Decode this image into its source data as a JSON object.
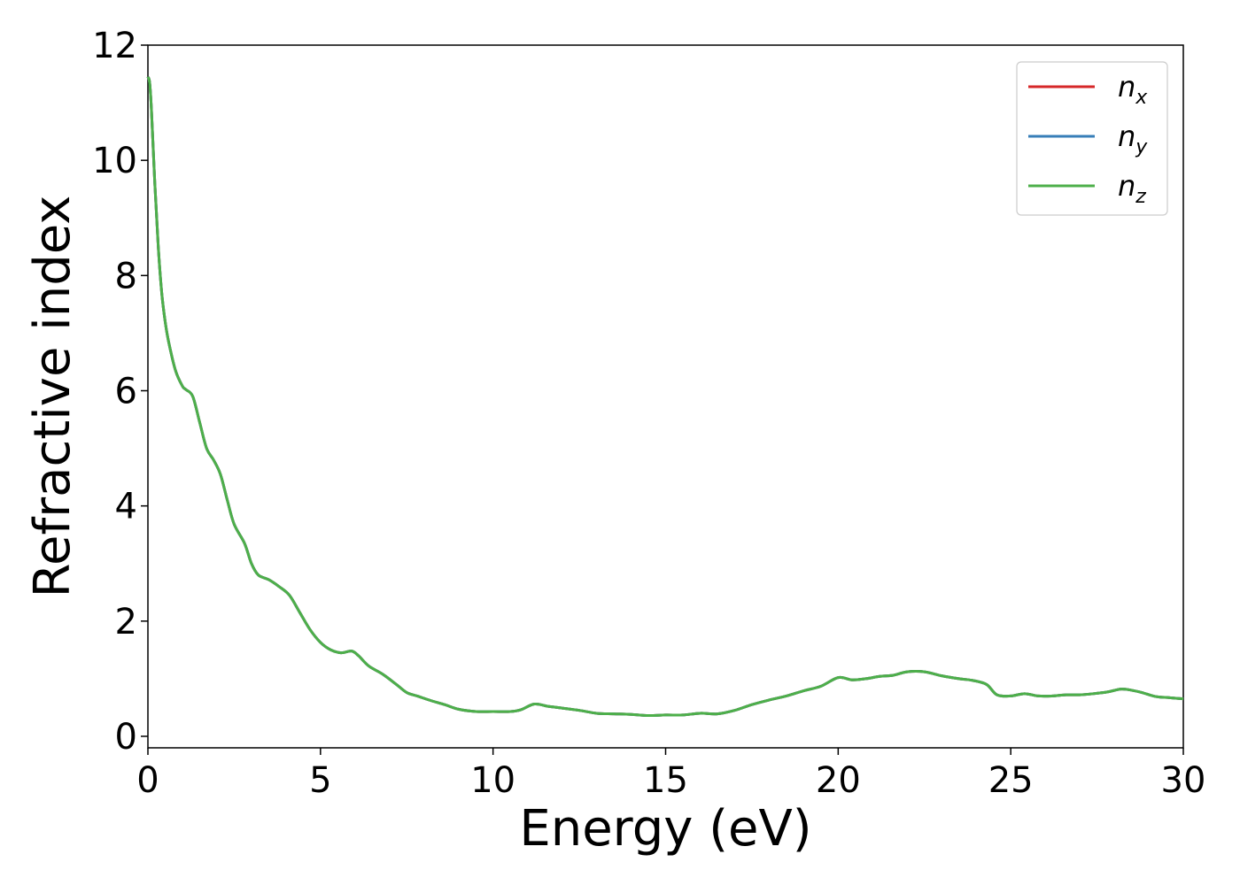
{
  "chart_data": {
    "type": "line",
    "xlabel": "Energy (eV)",
    "ylabel": "Refractive index",
    "xlim": [
      0,
      30
    ],
    "ylim": [
      -0.2,
      12
    ],
    "xticks": [
      0,
      5,
      10,
      15,
      20,
      25,
      30
    ],
    "yticks": [
      0,
      2,
      4,
      6,
      8,
      10,
      12
    ],
    "grid": false,
    "legend_position": "top-right",
    "x": [
      0,
      0.05,
      0.1,
      0.2,
      0.3,
      0.4,
      0.5,
      0.6,
      0.8,
      1.0,
      1.1,
      1.3,
      1.5,
      1.7,
      1.9,
      2.1,
      2.3,
      2.5,
      2.8,
      3.0,
      3.2,
      3.5,
      3.8,
      4.1,
      4.4,
      4.7,
      5.0,
      5.3,
      5.6,
      5.9,
      6.1,
      6.4,
      6.8,
      7.2,
      7.5,
      7.8,
      8.2,
      8.6,
      9.0,
      9.5,
      10.0,
      10.5,
      10.8,
      11.2,
      11.6,
      12.0,
      12.5,
      13.0,
      13.5,
      14.0,
      14.5,
      15.0,
      15.5,
      16.0,
      16.5,
      17.0,
      17.5,
      18.0,
      18.5,
      19.0,
      19.5,
      20.0,
      20.4,
      20.8,
      21.2,
      21.6,
      22.0,
      22.5,
      23.0,
      23.5,
      23.9,
      24.3,
      24.6,
      25.0,
      25.4,
      25.8,
      26.2,
      26.6,
      27.0,
      27.4,
      27.8,
      28.2,
      28.5,
      28.8,
      29.2,
      29.6,
      30.0
    ],
    "series": [
      {
        "name": "n_x",
        "color": "#d62728",
        "y": [
          11.45,
          11.35,
          10.9,
          9.6,
          8.5,
          7.7,
          7.2,
          6.85,
          6.35,
          6.08,
          6.02,
          5.9,
          5.45,
          5.0,
          4.8,
          4.55,
          4.1,
          3.68,
          3.35,
          3.0,
          2.8,
          2.72,
          2.6,
          2.45,
          2.15,
          1.85,
          1.63,
          1.5,
          1.45,
          1.48,
          1.4,
          1.22,
          1.08,
          0.9,
          0.76,
          0.7,
          0.62,
          0.55,
          0.47,
          0.43,
          0.43,
          0.43,
          0.46,
          0.56,
          0.52,
          0.49,
          0.45,
          0.4,
          0.39,
          0.38,
          0.36,
          0.37,
          0.37,
          0.4,
          0.39,
          0.45,
          0.55,
          0.63,
          0.7,
          0.79,
          0.87,
          1.02,
          0.98,
          1.0,
          1.04,
          1.06,
          1.12,
          1.12,
          1.05,
          1.0,
          0.97,
          0.9,
          0.72,
          0.7,
          0.74,
          0.7,
          0.7,
          0.72,
          0.72,
          0.74,
          0.77,
          0.82,
          0.8,
          0.76,
          0.69,
          0.67,
          0.65
        ]
      },
      {
        "name": "n_y",
        "color": "#377eb8",
        "y": [
          11.45,
          11.35,
          10.9,
          9.6,
          8.5,
          7.7,
          7.2,
          6.85,
          6.35,
          6.08,
          6.02,
          5.9,
          5.45,
          5.0,
          4.8,
          4.55,
          4.1,
          3.68,
          3.35,
          3.0,
          2.8,
          2.72,
          2.6,
          2.45,
          2.15,
          1.85,
          1.63,
          1.5,
          1.45,
          1.48,
          1.4,
          1.22,
          1.08,
          0.9,
          0.76,
          0.7,
          0.62,
          0.55,
          0.47,
          0.43,
          0.43,
          0.43,
          0.46,
          0.56,
          0.52,
          0.49,
          0.45,
          0.4,
          0.39,
          0.38,
          0.36,
          0.37,
          0.37,
          0.4,
          0.39,
          0.45,
          0.55,
          0.63,
          0.7,
          0.79,
          0.87,
          1.02,
          0.98,
          1.0,
          1.04,
          1.06,
          1.12,
          1.12,
          1.05,
          1.0,
          0.97,
          0.9,
          0.72,
          0.7,
          0.74,
          0.7,
          0.7,
          0.72,
          0.72,
          0.74,
          0.77,
          0.82,
          0.8,
          0.76,
          0.69,
          0.67,
          0.65
        ]
      },
      {
        "name": "n_z",
        "color": "#4daf4a",
        "y": [
          11.45,
          11.35,
          10.9,
          9.6,
          8.5,
          7.7,
          7.2,
          6.85,
          6.35,
          6.08,
          6.02,
          5.9,
          5.45,
          5.0,
          4.8,
          4.55,
          4.1,
          3.68,
          3.35,
          3.0,
          2.8,
          2.72,
          2.6,
          2.45,
          2.15,
          1.85,
          1.63,
          1.5,
          1.45,
          1.48,
          1.4,
          1.22,
          1.08,
          0.9,
          0.76,
          0.7,
          0.62,
          0.55,
          0.47,
          0.43,
          0.43,
          0.43,
          0.46,
          0.56,
          0.52,
          0.49,
          0.45,
          0.4,
          0.39,
          0.38,
          0.36,
          0.37,
          0.37,
          0.4,
          0.39,
          0.45,
          0.55,
          0.63,
          0.7,
          0.79,
          0.87,
          1.02,
          0.98,
          1.0,
          1.04,
          1.06,
          1.12,
          1.12,
          1.05,
          1.0,
          0.97,
          0.9,
          0.72,
          0.7,
          0.74,
          0.7,
          0.7,
          0.72,
          0.72,
          0.74,
          0.77,
          0.82,
          0.8,
          0.76,
          0.69,
          0.67,
          0.65
        ]
      }
    ],
    "legend": [
      {
        "base": "n",
        "sub": "x",
        "color": "#d62728"
      },
      {
        "base": "n",
        "sub": "y",
        "color": "#377eb8"
      },
      {
        "base": "n",
        "sub": "z",
        "color": "#4daf4a"
      }
    ]
  }
}
